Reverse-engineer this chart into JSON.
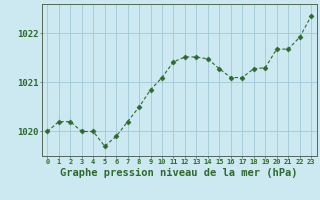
{
  "x": [
    0,
    1,
    2,
    3,
    4,
    5,
    6,
    7,
    8,
    9,
    10,
    11,
    12,
    13,
    14,
    15,
    16,
    17,
    18,
    19,
    20,
    21,
    22,
    23
  ],
  "y": [
    1020.0,
    1020.2,
    1020.2,
    1020.0,
    1020.0,
    1019.7,
    1019.9,
    1020.2,
    1020.5,
    1020.85,
    1021.1,
    1021.42,
    1021.52,
    1021.52,
    1021.48,
    1021.28,
    1021.1,
    1021.1,
    1021.28,
    1021.3,
    1021.68,
    1021.68,
    1021.92,
    1022.35
  ],
  "line_color": "#2d6a2d",
  "marker": "D",
  "marker_size": 2.5,
  "bg_color": "#cce8f0",
  "grid_color": "#a0c8d8",
  "xlabel": "Graphe pression niveau de la mer (hPa)",
  "xlabel_fontsize": 7.5,
  "yticks": [
    1020,
    1021,
    1022
  ],
  "ylim": [
    1019.5,
    1022.6
  ],
  "xlim": [
    -0.5,
    23.5
  ],
  "tick_color": "#2d6a2d",
  "axis_color": "#556655",
  "label_color": "#2d6a2d",
  "xtick_labels": [
    "0",
    "1",
    "2",
    "3",
    "4",
    "5",
    "6",
    "7",
    "8",
    "9",
    "10",
    "11",
    "12",
    "13",
    "14",
    "15",
    "16",
    "17",
    "18",
    "19",
    "20",
    "21",
    "22",
    "23"
  ]
}
